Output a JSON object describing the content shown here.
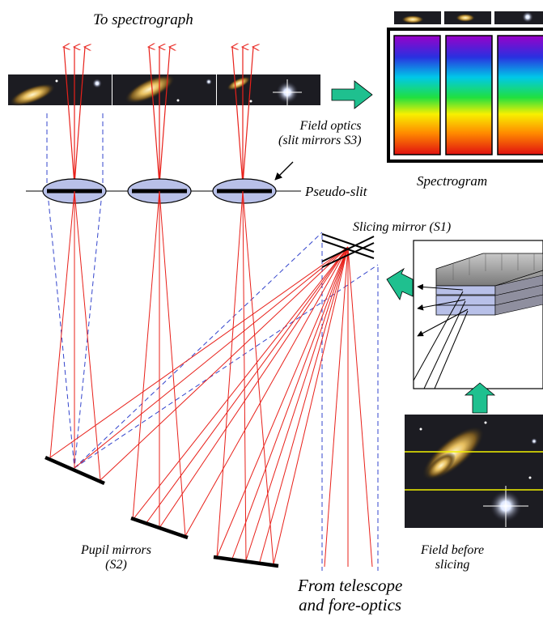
{
  "labels": {
    "to_spectrograph": "To spectrograph",
    "field_optics": [
      "Field optics",
      "(slit mirrors S3)"
    ],
    "spectrogram": "Spectrogram",
    "pseudo_slit": "Pseudo-slit",
    "slicing_mirror": "Slicing mirror (S1)",
    "pupil_mirrors": [
      "Pupil mirrors",
      "(S2)"
    ],
    "field_before_slicing": [
      "Field before",
      "slicing"
    ],
    "from_telescope": [
      "From telescope",
      "and fore-optics"
    ]
  },
  "colors": {
    "ray_red": "#e8201a",
    "dashed_blue": "#3344cc",
    "arrow_teal": "#1fc08f",
    "lens_fill": "#b8c0e8",
    "slit_yellow": "#f2f200"
  },
  "counts": {
    "slices": 3,
    "spectra": 3
  }
}
